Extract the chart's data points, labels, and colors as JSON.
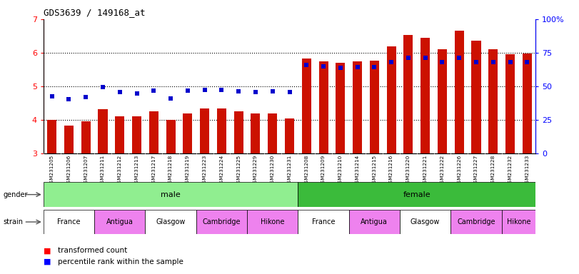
{
  "title": "GDS3639 / 149168_at",
  "samples": [
    "GSM231205",
    "GSM231206",
    "GSM231207",
    "GSM231211",
    "GSM231212",
    "GSM231213",
    "GSM231217",
    "GSM231218",
    "GSM231219",
    "GSM231223",
    "GSM231224",
    "GSM231225",
    "GSM231229",
    "GSM231230",
    "GSM231231",
    "GSM231208",
    "GSM231209",
    "GSM231210",
    "GSM231214",
    "GSM231215",
    "GSM231216",
    "GSM231220",
    "GSM231221",
    "GSM231222",
    "GSM231226",
    "GSM231227",
    "GSM231228",
    "GSM231232",
    "GSM231233"
  ],
  "bar_values": [
    4.0,
    3.83,
    3.95,
    4.32,
    4.1,
    4.1,
    4.25,
    4.0,
    4.2,
    4.35,
    4.35,
    4.25,
    4.2,
    4.2,
    4.05,
    5.82,
    5.75,
    5.71,
    5.75,
    5.77,
    6.2,
    6.52,
    6.45,
    6.1,
    6.65,
    6.35,
    6.1,
    5.95,
    5.97
  ],
  "percentile_left_axis": [
    4.7,
    4.62,
    4.68,
    4.97,
    4.82,
    4.78,
    4.87,
    4.63,
    4.87,
    4.9,
    4.9,
    4.85,
    4.83,
    4.85,
    4.83,
    5.63,
    5.6,
    5.55,
    5.58,
    5.58,
    5.72,
    5.85,
    5.85,
    5.73,
    5.85,
    5.73,
    5.73,
    5.73,
    5.73
  ],
  "bar_color": "#cc1100",
  "dot_color": "#0000cc",
  "bar_bottom": 3.0,
  "ylim_left": [
    3.0,
    7.0
  ],
  "ylim_right": [
    0,
    100
  ],
  "yticks_left": [
    3,
    4,
    5,
    6,
    7
  ],
  "yticks_right": [
    0,
    25,
    50,
    75,
    100
  ],
  "ytick_right_labels": [
    "0",
    "25",
    "50",
    "75",
    "100%"
  ],
  "gender_male_color": "#90ee90",
  "gender_female_color": "#3bbb3b",
  "strain_groups_male": [
    [
      "France",
      3,
      "#ffffff"
    ],
    [
      "Antigua",
      3,
      "#ee82ee"
    ],
    [
      "Glasgow",
      3,
      "#ffffff"
    ],
    [
      "Cambridge",
      3,
      "#ee82ee"
    ],
    [
      "Hikone",
      3,
      "#ee82ee"
    ]
  ],
  "strain_groups_female": [
    [
      "France",
      3,
      "#ffffff"
    ],
    [
      "Antigua",
      3,
      "#ee82ee"
    ],
    [
      "Glasgow",
      3,
      "#ffffff"
    ],
    [
      "Cambridge",
      3,
      "#ee82ee"
    ],
    [
      "Hikone",
      2,
      "#ee82ee"
    ]
  ],
  "male_count": 15,
  "female_count": 14,
  "n_total": 29,
  "xtick_bg_color": "#d3d3d3"
}
